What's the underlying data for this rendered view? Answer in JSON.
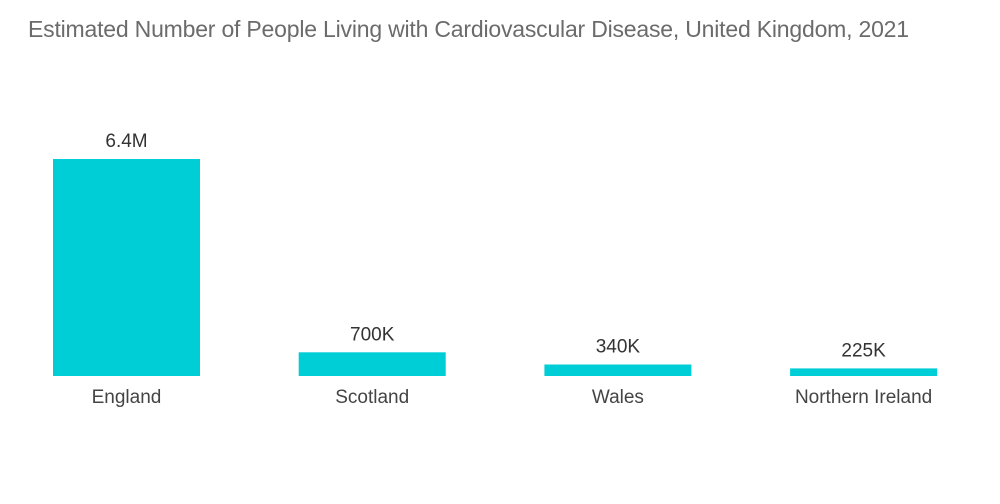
{
  "chart_data": {
    "type": "bar",
    "title": "Estimated Number of People Living with Cardiovascular Disease, United Kingdom, 2021",
    "categories": [
      "England",
      "Scotland",
      "Wales",
      "Northern Ireland"
    ],
    "values": [
      6400000,
      700000,
      340000,
      225000
    ],
    "data_labels": [
      "6.4M",
      "700K",
      "340K",
      "225K"
    ],
    "xlabel": "",
    "ylabel": "",
    "ylim": [
      0,
      6400000
    ],
    "grid": false,
    "legend": "none",
    "bar_color": "#00CED6"
  }
}
